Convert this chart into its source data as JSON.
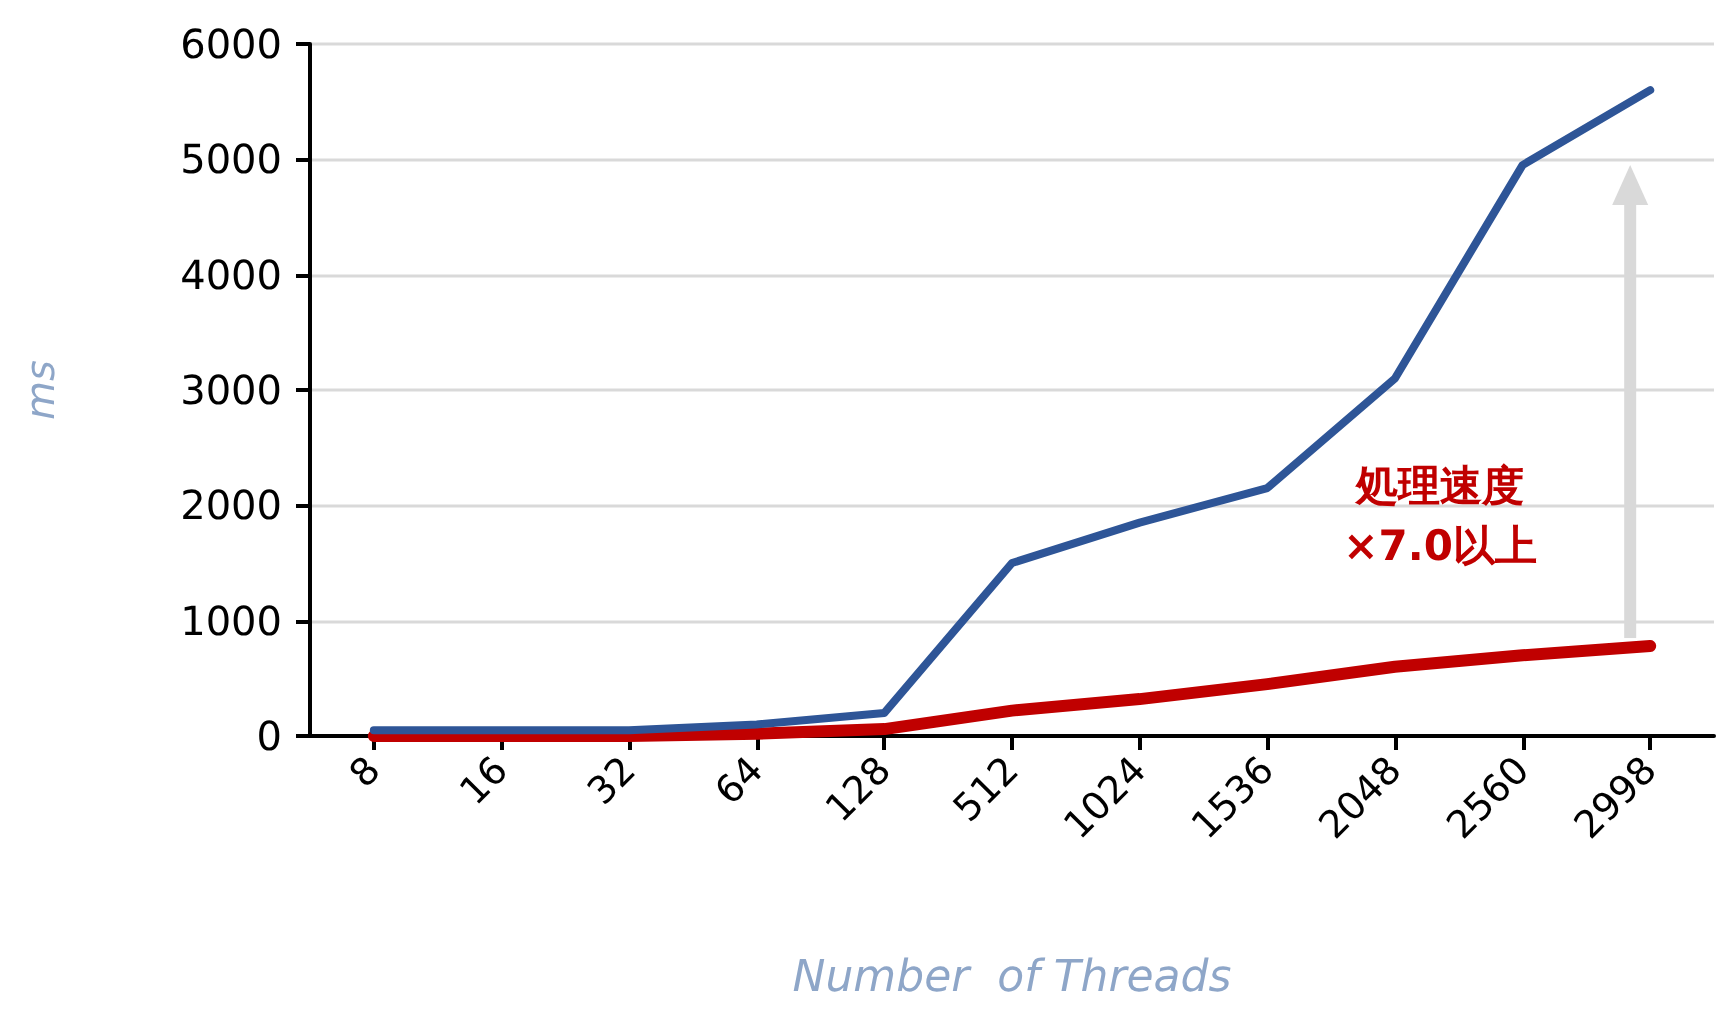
{
  "chart_data": {
    "type": "line",
    "xlabel": "Number  of Threads",
    "ylabel": "ms",
    "categories": [
      "8",
      "16",
      "32",
      "64",
      "128",
      "512",
      "1024",
      "1536",
      "2048",
      "2560",
      "2998"
    ],
    "series": [
      {
        "color": "#2e5597",
        "values": [
          50,
          50,
          50,
          100,
          200,
          1500,
          1850,
          2150,
          3100,
          4950,
          5600
        ]
      },
      {
        "color": "#c00000",
        "values": [
          0,
          0,
          0,
          20,
          60,
          220,
          320,
          450,
          600,
          700,
          780
        ]
      }
    ],
    "ylim": [
      0,
      6000
    ],
    "yticks": [
      0,
      1000,
      2000,
      3000,
      4000,
      5000,
      6000
    ],
    "grid": "y",
    "marker": "none",
    "line_style": "solid",
    "annotations": [
      "処理速度\n×7.0以上"
    ]
  }
}
